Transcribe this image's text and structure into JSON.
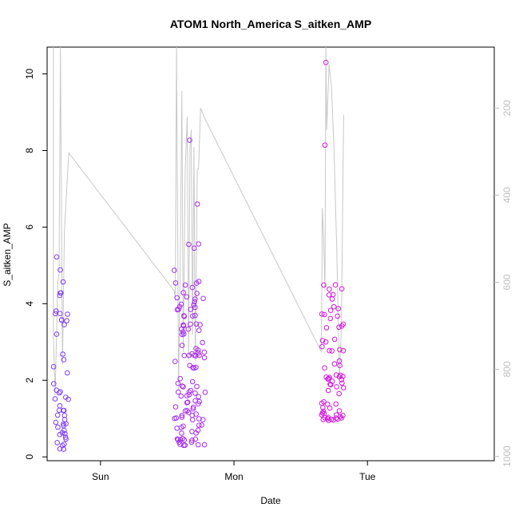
{
  "chart_data": {
    "type": "scatter",
    "title": "ATOM1 North_America S_aitken_AMP",
    "xlabel": "Date",
    "ylabel": "S_aitken_AMP",
    "x_tick_labels": [
      "Sun",
      "Mon",
      "Tue"
    ],
    "x_tick_positions_days": [
      1,
      2,
      3
    ],
    "xlim_days": [
      0.6,
      3.95
    ],
    "ylim": [
      -0.1,
      10.7
    ],
    "y_ticks": [
      0,
      2,
      4,
      6,
      8,
      10
    ],
    "y2_ticks": [
      200,
      400,
      600,
      800,
      1000
    ],
    "y2lim_reversed": [
      1010,
      60
    ],
    "grid": false,
    "legend": "none",
    "colors": {
      "start": "#7b3fff",
      "end": "#ff00cc",
      "secondary_line": "#c8c8c8",
      "secondary_axis": "#bebebe",
      "axis": "#000000"
    },
    "series": [
      {
        "clusters": [
          {
            "start_day": 0.647,
            "end_day": 0.762,
            "n": 45,
            "y_min": 0.2,
            "y_max": 5.2
          },
          {
            "start_day": 1.553,
            "end_day": 1.785,
            "n": 110,
            "y_min": 0.3,
            "y_max": 8.3
          },
          {
            "start_day": 2.655,
            "end_day": 2.822,
            "n": 70,
            "y_min": 0.95,
            "y_max": 10.3
          }
        ],
        "highlights": [
          [
            0.672,
            5.22
          ],
          [
            0.699,
            4.88
          ],
          [
            0.699,
            4.28
          ],
          [
            0.662,
            3.74
          ],
          [
            1.553,
            4.87
          ],
          [
            1.668,
            8.27
          ],
          [
            1.661,
            5.55
          ],
          [
            1.702,
            5.45
          ],
          [
            1.725,
            6.6
          ],
          [
            1.735,
            5.56
          ],
          [
            2.682,
            8.14
          ],
          [
            2.689,
            10.3
          ],
          [
            2.713,
            4.23
          ]
        ]
      },
      {
        "secondary_axis": true,
        "points": [
          [
            0.647,
            60
          ],
          [
            0.647,
            720
          ],
          [
            0.66,
            860
          ],
          [
            0.68,
            600
          ],
          [
            0.69,
            580
          ],
          [
            0.7,
            60
          ],
          [
            0.715,
            790
          ],
          [
            0.73,
            480
          ],
          [
            0.745,
            400
          ],
          [
            0.762,
            303
          ],
          [
            1.553,
            620
          ],
          [
            1.56,
            640
          ],
          [
            1.57,
            60
          ],
          [
            1.585,
            850
          ],
          [
            1.6,
            480
          ],
          [
            1.61,
            160
          ],
          [
            1.62,
            760
          ],
          [
            1.635,
            340
          ],
          [
            1.65,
            220
          ],
          [
            1.66,
            780
          ],
          [
            1.67,
            290
          ],
          [
            1.68,
            250
          ],
          [
            1.69,
            720
          ],
          [
            1.7,
            290
          ],
          [
            1.71,
            780
          ],
          [
            1.725,
            340
          ],
          [
            1.735,
            340
          ],
          [
            1.75,
            200
          ],
          [
            1.775,
            220
          ],
          [
            2.655,
            760
          ],
          [
            2.662,
            430
          ],
          [
            2.672,
            500
          ],
          [
            2.682,
            620
          ],
          [
            2.689,
            60
          ],
          [
            2.695,
            250
          ],
          [
            2.713,
            100
          ],
          [
            2.73,
            150
          ],
          [
            2.75,
            300
          ],
          [
            2.77,
            520
          ],
          [
            2.79,
            820
          ],
          [
            2.805,
            700
          ],
          [
            2.822,
            215
          ]
        ]
      }
    ]
  }
}
